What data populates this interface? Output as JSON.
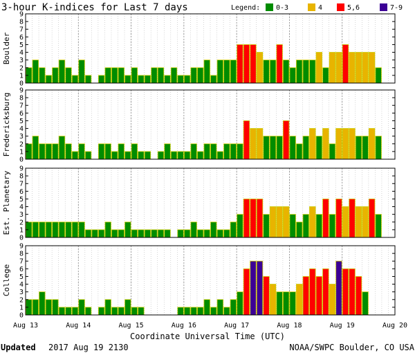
{
  "chart_data": {
    "type": "bar",
    "title": "3-hour K-indices for Last 7 days",
    "legend": {
      "label": "Legend:",
      "placement": "top-right",
      "items": [
        {
          "label": "0-3",
          "color": "#008c00"
        },
        {
          "label": "4",
          "color": "#e8b400"
        },
        {
          "label": "5,6",
          "color": "#ff0000"
        },
        {
          "label": "7-9",
          "color": "#3c0096"
        }
      ]
    },
    "bar_outline_color": "#cccc00",
    "ylim": [
      0,
      9
    ],
    "yticks": [
      0,
      1,
      2,
      3,
      4,
      5,
      6,
      7,
      8,
      9
    ],
    "xlabel": "Coordinate Universal Time (UTC)",
    "xtick_labels": [
      "Aug 13",
      "Aug 14",
      "Aug 15",
      "Aug 16",
      "Aug 17",
      "Aug 18",
      "Aug 19",
      "Aug 20"
    ],
    "intervals_per_day": 8,
    "grid": "vertical dotted at 3-hour boundaries",
    "series": [
      {
        "name": "Boulder",
        "values": [
          2,
          3,
          2,
          1,
          2,
          3,
          2,
          1,
          3,
          1,
          0,
          1,
          2,
          2,
          2,
          1,
          2,
          1,
          1,
          2,
          2,
          1,
          2,
          1,
          1,
          2,
          2,
          3,
          1,
          3,
          3,
          3,
          5,
          5,
          5,
          4,
          3,
          3,
          5,
          3,
          2,
          3,
          3,
          3,
          4,
          2,
          4,
          4,
          5,
          4,
          4,
          4,
          4,
          2,
          0
        ]
      },
      {
        "name": "Fredericksburg",
        "values": [
          2,
          3,
          2,
          2,
          2,
          3,
          2,
          1,
          2,
          1,
          0,
          2,
          2,
          1,
          2,
          1,
          2,
          1,
          1,
          0,
          1,
          2,
          1,
          1,
          1,
          2,
          1,
          2,
          2,
          1,
          2,
          2,
          2,
          5,
          4,
          4,
          3,
          3,
          3,
          5,
          3,
          2,
          3,
          4,
          3,
          4,
          2,
          4,
          4,
          4,
          3,
          3,
          4,
          3,
          0
        ]
      },
      {
        "name": "Est. Planetary",
        "values": [
          2,
          2,
          2,
          2,
          2,
          2,
          2,
          2,
          2,
          1,
          1,
          1,
          2,
          1,
          1,
          2,
          1,
          1,
          1,
          1,
          1,
          1,
          0,
          1,
          1,
          2,
          1,
          1,
          2,
          1,
          1,
          2,
          3,
          5,
          5,
          5,
          3,
          4,
          4,
          4,
          3,
          2,
          3,
          4,
          3,
          5,
          3,
          5,
          4,
          5,
          4,
          4,
          5,
          3,
          0
        ]
      },
      {
        "name": "College",
        "values": [
          2,
          2,
          3,
          2,
          2,
          1,
          1,
          1,
          2,
          1,
          0,
          1,
          2,
          1,
          1,
          2,
          1,
          1,
          0,
          0,
          0,
          0,
          0,
          1,
          1,
          1,
          1,
          2,
          1,
          2,
          1,
          2,
          3,
          6,
          7,
          7,
          5,
          4,
          3,
          3,
          3,
          4,
          5,
          6,
          5,
          6,
          4,
          7,
          6,
          6,
          5,
          3,
          0
        ]
      }
    ]
  },
  "footer": {
    "updated_label": "Updated",
    "updated_value": "2017 Aug 19 2130",
    "source": "NOAA/SWPC Boulder, CO USA"
  }
}
